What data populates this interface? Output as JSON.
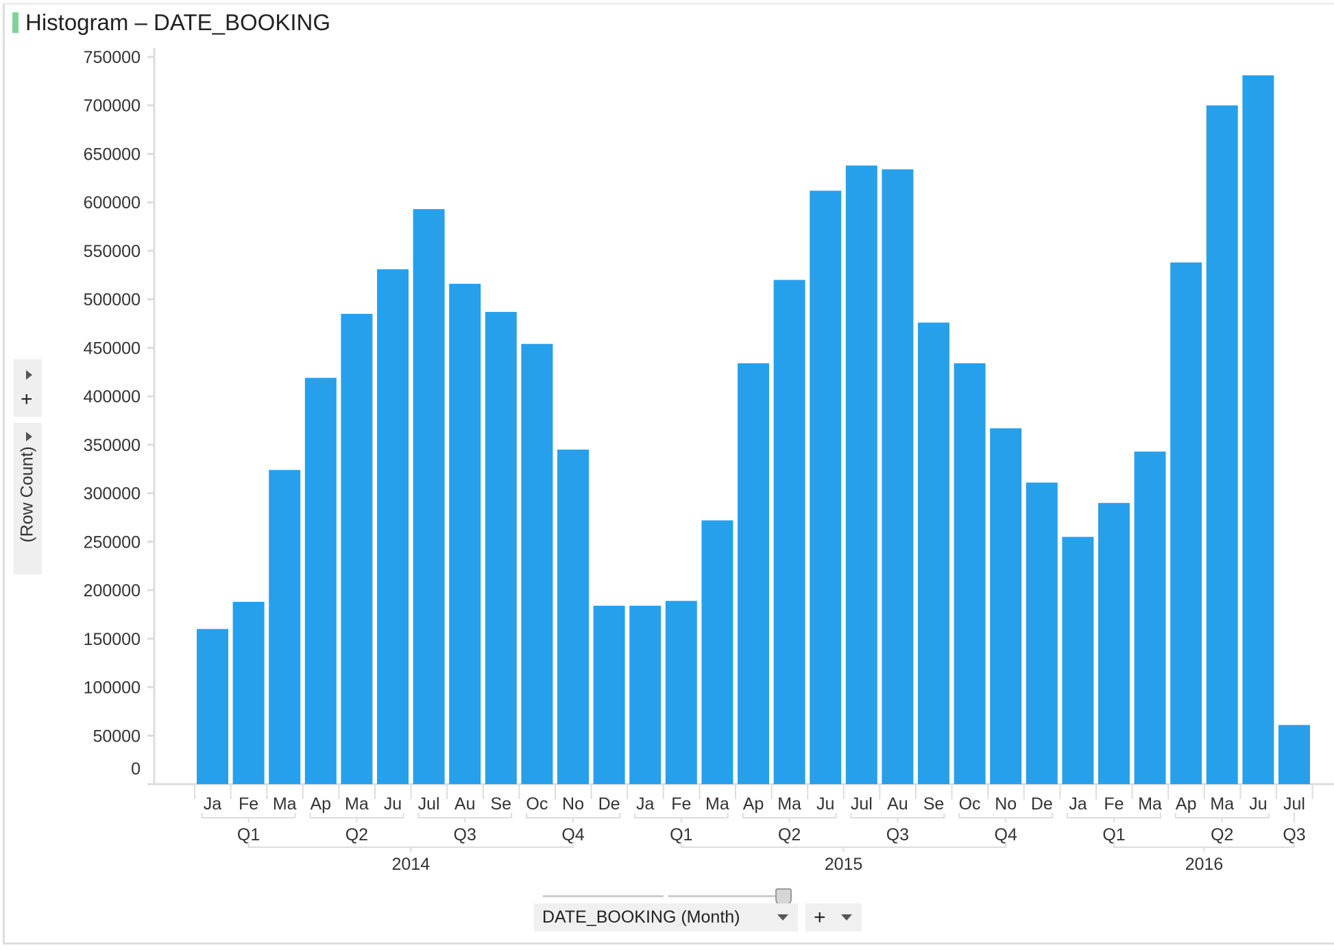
{
  "title": "Histogram – DATE_BOOKING",
  "colors": {
    "bar": "#27a0eb",
    "title_mark": "#7ed39a"
  },
  "y_axis_panel": {
    "label": "(Row Count)"
  },
  "x_axis_control": {
    "column_label": "DATE_BOOKING (Month)"
  },
  "chart_data": {
    "type": "bar",
    "title": "Histogram – DATE_BOOKING",
    "xlabel": "DATE_BOOKING (Month)",
    "ylabel": "(Row Count)",
    "ylim": [
      0,
      750000
    ],
    "yticks": [
      "750000",
      "700000",
      "650000",
      "600000",
      "550000",
      "500000",
      "450000",
      "400000",
      "350000",
      "300000",
      "250000",
      "200000",
      "150000",
      "100000",
      "50000",
      "0"
    ],
    "categories": [
      "Ja",
      "Fe",
      "Ma",
      "Ap",
      "Ma",
      "Ju",
      "Jul",
      "Au",
      "Se",
      "Oc",
      "No",
      "De",
      "Ja",
      "Fe",
      "Ma",
      "Ap",
      "Ma",
      "Ju",
      "Jul",
      "Au",
      "Se",
      "Oc",
      "No",
      "De",
      "Ja",
      "Fe",
      "Ma",
      "Ap",
      "Ma",
      "Ju",
      "Jul"
    ],
    "quarters": [
      {
        "label": "Q1",
        "start": 0,
        "end": 2
      },
      {
        "label": "Q2",
        "start": 3,
        "end": 5
      },
      {
        "label": "Q3",
        "start": 6,
        "end": 8
      },
      {
        "label": "Q4",
        "start": 9,
        "end": 11
      },
      {
        "label": "Q1",
        "start": 12,
        "end": 14
      },
      {
        "label": "Q2",
        "start": 15,
        "end": 17
      },
      {
        "label": "Q3",
        "start": 18,
        "end": 20
      },
      {
        "label": "Q4",
        "start": 21,
        "end": 23
      },
      {
        "label": "Q1",
        "start": 24,
        "end": 26
      },
      {
        "label": "Q2",
        "start": 27,
        "end": 29
      },
      {
        "label": "Q3",
        "start": 30,
        "end": 30
      }
    ],
    "years": [
      {
        "label": "2014",
        "start": 0,
        "end": 11
      },
      {
        "label": "2015",
        "start": 12,
        "end": 23
      },
      {
        "label": "2016",
        "start": 24,
        "end": 30
      }
    ],
    "values": [
      160000,
      188000,
      324000,
      419000,
      485000,
      531000,
      593000,
      516000,
      487000,
      454000,
      345000,
      184000,
      184000,
      189000,
      272000,
      434000,
      520000,
      612000,
      638000,
      634000,
      476000,
      434000,
      367000,
      311000,
      255000,
      290000,
      343000,
      538000,
      700000,
      731000,
      61000
    ],
    "grid": false,
    "legend": "none"
  }
}
